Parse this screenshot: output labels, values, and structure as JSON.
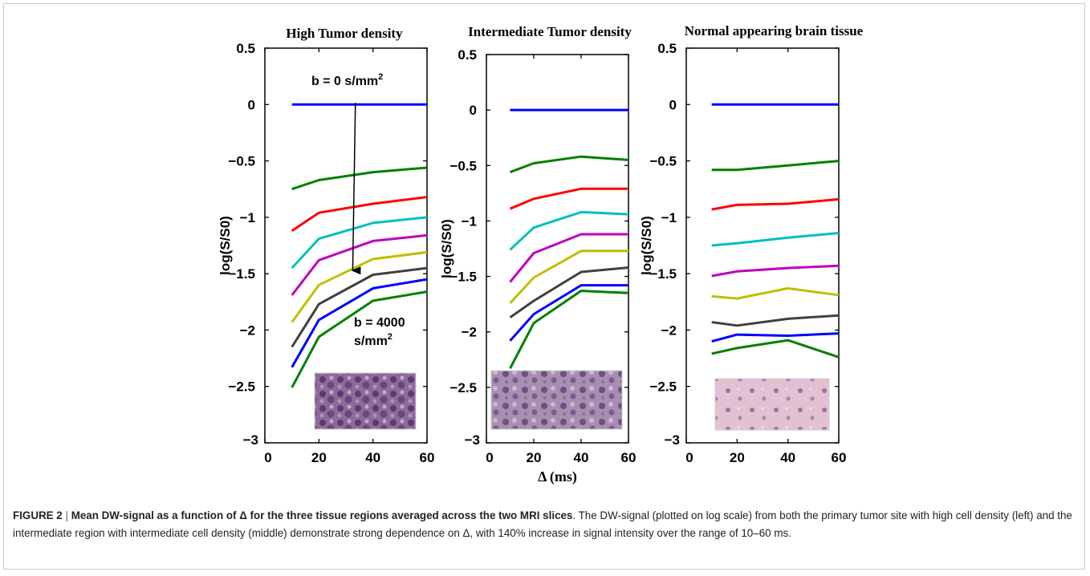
{
  "figure": {
    "caption": {
      "label": "FIGURE 2",
      "separator": " | ",
      "bold_title": "Mean DW-signal as a function of Δ for the three tissue regions averaged across the two MRI slices",
      "body": ". The DW-signal (plotted on log scale) from both the primary tumor site with high cell density (left) and the intermediate region with intermediate cell density (middle) demonstrate strong dependence on Δ, with 140% increase in signal intensity over the range of 10–60 ms."
    },
    "ylabel": "log(S/S0)",
    "xlabel": "Δ (ms)",
    "histology_insets": [
      {
        "panel": "High Tumor density",
        "tone": "dense-purple"
      },
      {
        "panel": "Intermediate Tumor density",
        "tone": "medium-purple"
      },
      {
        "panel": "Normal appearing brain tissue",
        "tone": "pale-pink"
      }
    ]
  },
  "chart_data": [
    {
      "type": "line",
      "title": "High Tumor density",
      "xlabel": "",
      "ylabel": "log(S/S0)",
      "xlim": [
        0,
        60
      ],
      "ylim": [
        -3,
        0.5
      ],
      "xticks": [
        "0",
        "20",
        "40",
        "60"
      ],
      "yticks": [
        "0.5",
        "0",
        "−0.5",
        "−1",
        "−1.5",
        "−2",
        "−2.5",
        "−3"
      ],
      "grid": false,
      "x": [
        10,
        20,
        40,
        60
      ],
      "annotations": [
        {
          "text": "b = 0 s/mm",
          "sup": "2",
          "note": "arrow from top curve downward"
        },
        {
          "text": "b = 4000",
          "text2": "s/mm",
          "sup": "2"
        }
      ],
      "series": [
        {
          "color": "#0000ff",
          "values": [
            0,
            0,
            0,
            0
          ]
        },
        {
          "color": "#008000",
          "values": [
            -0.75,
            -0.67,
            -0.6,
            -0.56
          ]
        },
        {
          "color": "#ff0000",
          "values": [
            -1.12,
            -0.96,
            -0.88,
            -0.82
          ]
        },
        {
          "color": "#00bfbf",
          "values": [
            -1.45,
            -1.19,
            -1.05,
            -1.0
          ]
        },
        {
          "color": "#bf00bf",
          "values": [
            -1.69,
            -1.38,
            -1.21,
            -1.16
          ]
        },
        {
          "color": "#bfbf00",
          "values": [
            -1.93,
            -1.6,
            -1.37,
            -1.31
          ]
        },
        {
          "color": "#404040",
          "values": [
            -2.15,
            -1.77,
            -1.51,
            -1.45
          ]
        },
        {
          "color": "#0000ff",
          "values": [
            -2.33,
            -1.91,
            -1.63,
            -1.55
          ]
        },
        {
          "color": "#008000",
          "values": [
            -2.51,
            -2.06,
            -1.74,
            -1.66
          ]
        }
      ]
    },
    {
      "type": "line",
      "title": "Intermediate Tumor density",
      "xlabel": "Δ (ms)",
      "ylabel": "log(S/S0)",
      "xlim": [
        0,
        60
      ],
      "ylim": [
        -3,
        0.5
      ],
      "xticks": [
        "0",
        "20",
        "40",
        "60"
      ],
      "yticks": [
        "0.5",
        "0",
        "−0.5",
        "−1",
        "−1.5",
        "−2",
        "−2.5",
        "−3"
      ],
      "grid": false,
      "x": [
        10,
        20,
        40,
        60
      ],
      "series": [
        {
          "color": "#0000ff",
          "values": [
            0,
            0,
            0,
            0
          ]
        },
        {
          "color": "#008000",
          "values": [
            -0.56,
            -0.48,
            -0.42,
            -0.45
          ]
        },
        {
          "color": "#ff0000",
          "values": [
            -0.89,
            -0.8,
            -0.71,
            -0.71
          ]
        },
        {
          "color": "#00bfbf",
          "values": [
            -1.26,
            -1.06,
            -0.92,
            -0.94
          ]
        },
        {
          "color": "#bf00bf",
          "values": [
            -1.55,
            -1.29,
            -1.12,
            -1.12
          ]
        },
        {
          "color": "#bfbf00",
          "values": [
            -1.74,
            -1.51,
            -1.27,
            -1.27
          ]
        },
        {
          "color": "#404040",
          "values": [
            -1.87,
            -1.72,
            -1.46,
            -1.42
          ]
        },
        {
          "color": "#0000ff",
          "values": [
            -2.08,
            -1.84,
            -1.58,
            -1.58
          ]
        },
        {
          "color": "#008000",
          "values": [
            -2.33,
            -1.92,
            -1.63,
            -1.65
          ]
        }
      ]
    },
    {
      "type": "line",
      "title": "Normal appearing brain tissue",
      "xlabel": "",
      "ylabel": "log(S/S0)",
      "xlim": [
        0,
        60
      ],
      "ylim": [
        -3,
        0.5
      ],
      "xticks": [
        "0",
        "20",
        "40",
        "60"
      ],
      "yticks": [
        "0.5",
        "0",
        "−0.5",
        "−1",
        "−1.5",
        "−2",
        "−2.5",
        "−3"
      ],
      "grid": false,
      "x": [
        10,
        20,
        40,
        60
      ],
      "series": [
        {
          "color": "#0000ff",
          "values": [
            0,
            0,
            0,
            0
          ]
        },
        {
          "color": "#008000",
          "values": [
            -0.58,
            -0.58,
            -0.54,
            -0.5
          ]
        },
        {
          "color": "#ff0000",
          "values": [
            -0.93,
            -0.89,
            -0.88,
            -0.84
          ]
        },
        {
          "color": "#00bfbf",
          "values": [
            -1.25,
            -1.23,
            -1.18,
            -1.14
          ]
        },
        {
          "color": "#bf00bf",
          "values": [
            -1.52,
            -1.48,
            -1.45,
            -1.43
          ]
        },
        {
          "color": "#bfbf00",
          "values": [
            -1.7,
            -1.72,
            -1.63,
            -1.69
          ]
        },
        {
          "color": "#404040",
          "values": [
            -1.93,
            -1.96,
            -1.9,
            -1.87
          ]
        },
        {
          "color": "#0000ff",
          "values": [
            -2.1,
            -2.04,
            -2.05,
            -2.03
          ]
        },
        {
          "color": "#008000",
          "values": [
            -2.21,
            -2.16,
            -2.09,
            -2.24
          ]
        }
      ]
    }
  ]
}
